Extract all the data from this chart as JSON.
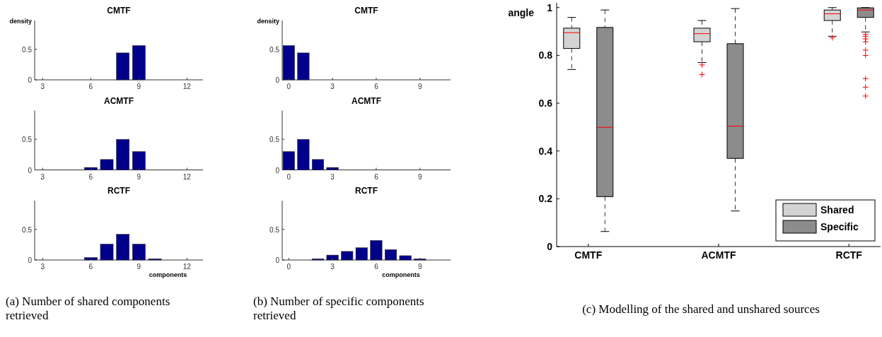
{
  "chart_data": [
    {
      "type": "bar",
      "title": "CMTF",
      "ylabel": "density",
      "x": [
        8,
        9
      ],
      "values": [
        0.44,
        0.56
      ],
      "color": "#00008b",
      "xlim": [
        2.5,
        13
      ],
      "xticks": [
        3,
        6,
        9,
        12
      ],
      "ylim": [
        0,
        0.97
      ],
      "yticks": [
        0,
        0.5
      ]
    },
    {
      "type": "bar",
      "title": "ACMTF",
      "x": [
        6,
        7,
        8,
        9
      ],
      "values": [
        0.04,
        0.17,
        0.5,
        0.3
      ],
      "color": "#00008b",
      "xlim": [
        2.5,
        13
      ],
      "xticks": [
        3,
        6,
        9,
        12
      ],
      "ylim": [
        0,
        0.97
      ],
      "yticks": [
        0,
        0.5
      ]
    },
    {
      "type": "bar",
      "title": "RCTF",
      "xlabel": "components",
      "x": [
        6,
        7,
        8,
        9,
        10
      ],
      "values": [
        0.04,
        0.26,
        0.42,
        0.26,
        0.02
      ],
      "color": "#00008b",
      "xlim": [
        2.5,
        13
      ],
      "xticks": [
        3,
        6,
        9,
        12
      ],
      "ylim": [
        0,
        0.97
      ],
      "yticks": [
        0,
        0.5
      ],
      "annotations": [
        "(a) Number of shared components retrieved"
      ]
    },
    {
      "type": "bar",
      "title": "CMTF",
      "ylabel": "density",
      "x": [
        0,
        1
      ],
      "values": [
        0.56,
        0.44
      ],
      "color": "#00008b",
      "xlim": [
        -0.45,
        11.1
      ],
      "xticks": [
        0,
        3,
        6,
        9
      ],
      "ylim": [
        0,
        0.97
      ],
      "yticks": [
        0,
        0.5
      ]
    },
    {
      "type": "bar",
      "title": "ACMTF",
      "x": [
        0,
        1,
        2,
        3
      ],
      "values": [
        0.3,
        0.5,
        0.17,
        0.04
      ],
      "color": "#00008b",
      "xlim": [
        -0.45,
        11.1
      ],
      "xticks": [
        0,
        3,
        6,
        9
      ],
      "ylim": [
        0,
        0.97
      ],
      "yticks": [
        0,
        0.5
      ]
    },
    {
      "type": "bar",
      "title": "RCTF",
      "xlabel": "components",
      "x": [
        2,
        3,
        4,
        5,
        6,
        7,
        8,
        9
      ],
      "values": [
        0.02,
        0.08,
        0.14,
        0.2,
        0.32,
        0.17,
        0.07,
        0.02
      ],
      "color": "#00008b",
      "xlim": [
        -0.45,
        11.1
      ],
      "xticks": [
        0,
        3,
        6,
        9
      ],
      "ylim": [
        0,
        0.97
      ],
      "yticks": [
        0,
        0.5
      ],
      "annotations": [
        "(b) Number of specific components retrieved"
      ]
    },
    {
      "type": "box",
      "ylabel": "angle",
      "categories": [
        "CMTF",
        "ACMTF",
        "RCTF"
      ],
      "ylim": [
        0,
        1.02
      ],
      "yticks": [
        0,
        0.2,
        0.4,
        0.6,
        0.8,
        1
      ],
      "legend": "bottom right",
      "annotations": [
        "(c) Modelling of the shared and unshared sources"
      ],
      "series": [
        {
          "name": "Shared",
          "color": "#d3d3d3",
          "boxes": [
            {
              "low": 0.741,
              "q1": 0.829,
              "median": 0.895,
              "q3": 0.914,
              "high": 0.959
            },
            {
              "low": 0.77,
              "q1": 0.857,
              "median": 0.891,
              "q3": 0.914,
              "high": 0.946,
              "outliers": [
                0.76,
                0.72
              ]
            },
            {
              "low": 0.88,
              "q1": 0.946,
              "median": 0.974,
              "q3": 0.99,
              "high": 1.0,
              "outliers": [
                0.874
              ]
            }
          ]
        },
        {
          "name": "Specific",
          "color": "#8c8c8c",
          "boxes": [
            {
              "low": 0.063,
              "q1": 0.209,
              "median": 0.499,
              "q3": 0.917,
              "high": 0.99
            },
            {
              "low": 0.149,
              "q1": 0.369,
              "median": 0.504,
              "q3": 0.849,
              "high": 0.996
            },
            {
              "low": 0.898,
              "q1": 0.959,
              "median": 0.99,
              "q3": 0.999,
              "high": 1.0,
              "outliers": [
                0.888,
                0.88,
                0.869,
                0.857,
                0.822,
                0.8,
                0.703,
                0.667,
                0.63
              ]
            }
          ]
        }
      ]
    }
  ]
}
